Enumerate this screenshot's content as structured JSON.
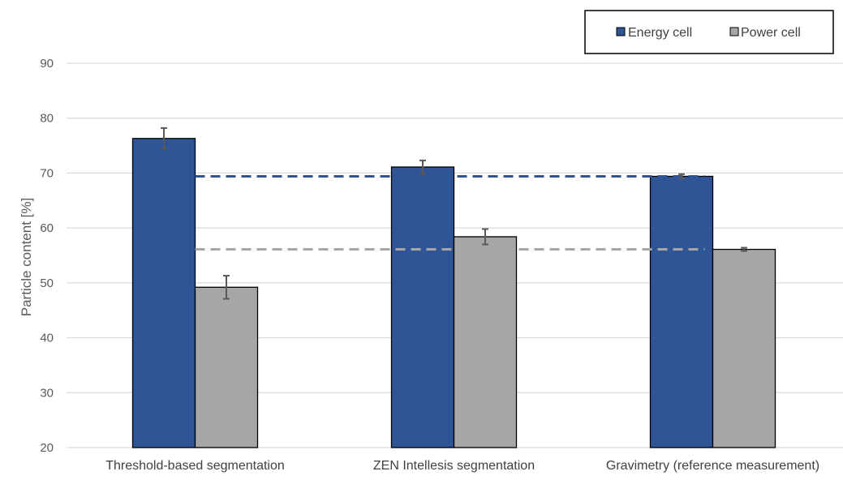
{
  "chart_data": {
    "type": "bar",
    "title": "",
    "xlabel": "",
    "ylabel": "Particle content [%]",
    "ylim": [
      20,
      90
    ],
    "yticks": [
      20,
      30,
      40,
      50,
      60,
      70,
      80,
      90
    ],
    "grid": true,
    "legend_position": "top-right",
    "categories": [
      "Threshold-based segmentation",
      "ZEN Intellesis segmentation",
      "Gravimetry (reference measurement)"
    ],
    "series": [
      {
        "name": "Energy cell",
        "color": "#2f5597",
        "values": [
          76.3,
          71.1,
          69.4
        ],
        "errors": [
          1.9,
          1.2,
          0.4
        ]
      },
      {
        "name": "Power cell",
        "color": "#a6a6a6",
        "values": [
          49.2,
          58.4,
          56.1
        ],
        "errors": [
          2.1,
          1.4,
          0.3
        ]
      }
    ],
    "reference_lines": [
      {
        "series": "Energy cell",
        "value": 69.4,
        "color": "#2f5597",
        "style": "dashed"
      },
      {
        "series": "Power cell",
        "value": 56.1,
        "color": "#a6a6a6",
        "style": "dashed"
      }
    ]
  }
}
